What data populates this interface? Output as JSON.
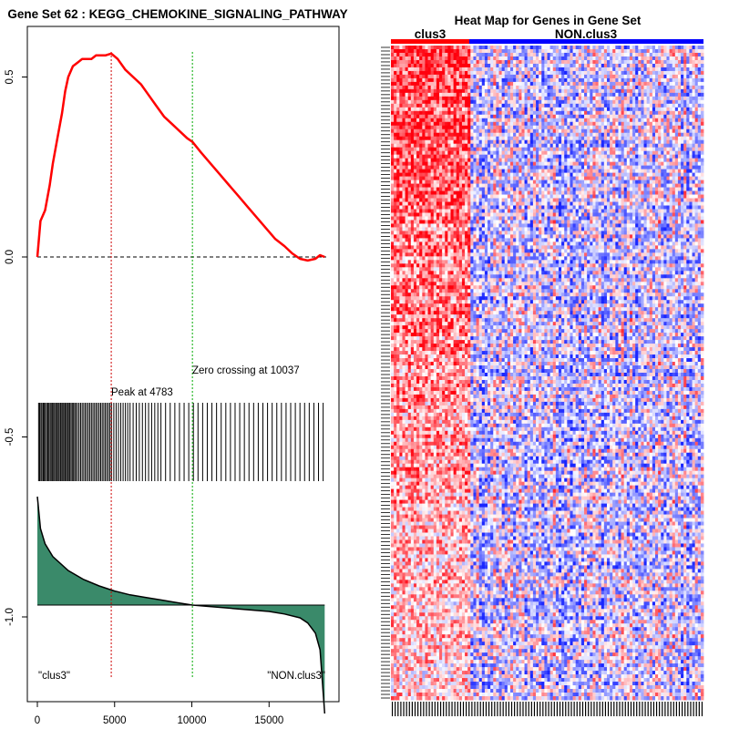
{
  "left_plot": {
    "title": "Gene Set  62 : KEGG_CHEMOKINE_SIGNALING_PATHWAY",
    "x_ticks": [
      "0",
      "5000",
      "10000",
      "15000"
    ],
    "y_ticks": [
      "0.5",
      "0.0",
      "-0.5",
      "-1.0"
    ],
    "peak_label": "Peak at 4783",
    "zero_crossing_label": "Zero crossing at 10037",
    "left_class_label": "\"clus3\"",
    "right_class_label": "\"NON.clus3\"",
    "colors": {
      "es_line": "#ff0000",
      "peak_line": "#cc0000",
      "zero_line": "#00aa00",
      "ranking_fill": "#3a8a6a",
      "hits": "#000000"
    }
  },
  "right_plot": {
    "title": "Heat Map for Genes in Gene Set",
    "group1_label": "clus3",
    "group2_label": "NON.clus3",
    "colors": {
      "group1_bar": "#ff0000",
      "group2_bar": "#0000ff"
    }
  },
  "chart_data": [
    {
      "type": "line",
      "title": "Gene Set  62 : KEGG_CHEMOKINE_SIGNALING_PATHWAY",
      "xlabel": "",
      "ylabel": "",
      "xlim": [
        0,
        18800
      ],
      "ylim": [
        -1.25,
        0.62
      ],
      "series": [
        {
          "name": "running enrichment score",
          "x": [
            0,
            200,
            500,
            800,
            1000,
            1300,
            1600,
            1800,
            2000,
            2300,
            2600,
            2900,
            3200,
            3500,
            3800,
            4100,
            4400,
            4783,
            5200,
            5700,
            6200,
            6700,
            7200,
            7700,
            8200,
            8700,
            9200,
            9700,
            10037,
            10600,
            11200,
            11800,
            12400,
            13000,
            13600,
            14200,
            14800,
            15400,
            16000,
            16500,
            17000,
            17500,
            18000,
            18300,
            18600
          ],
          "y": [
            0.0,
            0.1,
            0.13,
            0.2,
            0.26,
            0.33,
            0.4,
            0.46,
            0.5,
            0.53,
            0.54,
            0.55,
            0.55,
            0.55,
            0.56,
            0.56,
            0.56,
            0.565,
            0.55,
            0.52,
            0.5,
            0.48,
            0.45,
            0.42,
            0.39,
            0.37,
            0.35,
            0.33,
            0.32,
            0.29,
            0.26,
            0.23,
            0.2,
            0.17,
            0.14,
            0.11,
            0.08,
            0.05,
            0.03,
            0.01,
            -0.005,
            -0.01,
            -0.005,
            0.005,
            0.0
          ]
        }
      ],
      "peak_x": 4783,
      "zero_crossing_x": 10037,
      "hit_positions": [
        80,
        150,
        230,
        300,
        380,
        450,
        520,
        600,
        680,
        750,
        830,
        900,
        980,
        1050,
        1120,
        1200,
        1280,
        1350,
        1420,
        1500,
        1580,
        1650,
        1720,
        1800,
        1880,
        1950,
        2020,
        2100,
        2180,
        2260,
        2340,
        2420,
        2500,
        2600,
        2700,
        2800,
        2900,
        3000,
        3100,
        3200,
        3300,
        3400,
        3500,
        3600,
        3700,
        3800,
        3900,
        4000,
        4100,
        4200,
        4300,
        4400,
        4500,
        4600,
        4700,
        4800,
        4950,
        5100,
        5250,
        5400,
        5550,
        5700,
        5850,
        6000,
        6200,
        6400,
        6600,
        6800,
        7000,
        7200,
        7400,
        7600,
        7800,
        8000,
        8300,
        8600,
        8900,
        9200,
        9500,
        9800,
        10100,
        10400,
        10700,
        11000,
        11300,
        11600,
        11900,
        12200,
        12500,
        12800,
        13100,
        13400,
        13700,
        14000,
        14300,
        14600,
        14900,
        15200,
        15500,
        15800,
        16100,
        16400,
        16700,
        17000,
        17300,
        17600,
        17900,
        18200,
        18500
      ],
      "ranking_metric": {
        "x": [
          0,
          200,
          500,
          1000,
          2000,
          3000,
          4000,
          5000,
          6000,
          7000,
          8000,
          9000,
          10037,
          11000,
          12000,
          13000,
          14000,
          15000,
          16000,
          17000,
          17500,
          18000,
          18300,
          18600
        ],
        "y": [
          0.85,
          0.6,
          0.48,
          0.38,
          0.27,
          0.2,
          0.15,
          0.11,
          0.08,
          0.06,
          0.04,
          0.02,
          0.0,
          -0.01,
          -0.02,
          -0.03,
          -0.04,
          -0.05,
          -0.07,
          -0.1,
          -0.14,
          -0.22,
          -0.35,
          -0.85
        ]
      },
      "x_ticks": [
        0,
        5000,
        10000,
        15000
      ],
      "y_ticks": [
        0.5,
        0.0,
        -0.5,
        -1.0
      ]
    },
    {
      "type": "heatmap",
      "title": "Heat Map for Genes in Gene Set",
      "groups": [
        {
          "name": "clus3",
          "fraction": 0.25
        },
        {
          "name": "NON.clus3",
          "fraction": 0.75
        }
      ],
      "n_genes": 180,
      "n_samples": 110,
      "scale": "blue-white-red"
    }
  ]
}
